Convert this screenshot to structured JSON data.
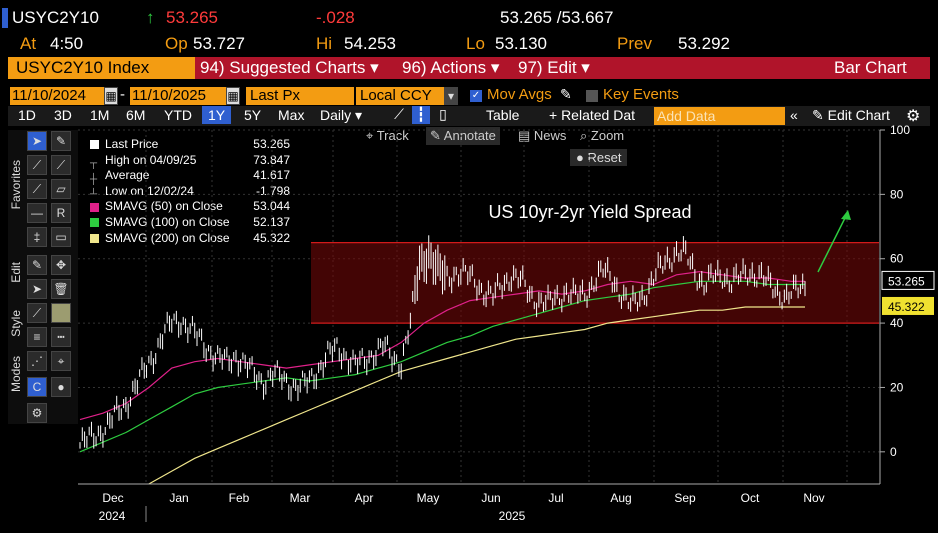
{
  "quote": {
    "ticker": "USYC2Y10",
    "arrow": "↑",
    "last": "53.265",
    "change": "-.028",
    "bid_ask": "53.265 /53.667",
    "at_label": "At",
    "at_time": "4:50",
    "open_label": "Op",
    "open": "53.727",
    "high_label": "Hi",
    "high": "54.253",
    "low_label": "Lo",
    "low": "53.130",
    "prev_label": "Prev",
    "prev": "53.292"
  },
  "menubar": {
    "security": "USYC2Y10 Index",
    "suggested": "94) Suggested Charts ▾",
    "actions": "96) Actions ▾",
    "edit": "97) Edit ▾",
    "chart_type": "Bar Chart"
  },
  "controls": {
    "start_date": "11/10/2024",
    "end_date": "11/10/2025",
    "field": "Last Px",
    "currency": "Local CCY",
    "mov_avgs": "Mov Avgs",
    "key_events": "Key Events",
    "periods": [
      "1D",
      "3D",
      "1M",
      "6M",
      "YTD",
      "1Y",
      "5Y",
      "Max"
    ],
    "active_period": "1Y",
    "frequency": "Daily ▾",
    "table": "Table",
    "related": "+ Related Dat",
    "add_data_placeholder": "Add Data",
    "edit_chart": "Edit Chart"
  },
  "chart_toolbar": {
    "track": "Track",
    "annotate": "Annotate",
    "news": "News",
    "zoom": "Zoom",
    "reset": "Reset"
  },
  "side_tabs": [
    "Favorites",
    "Edit",
    "Style",
    "Modes"
  ],
  "legend": [
    {
      "label": "Last Price",
      "value": "53.265",
      "color": "#ffffff"
    },
    {
      "label": "High on 04/09/25",
      "value": "73.847",
      "color": ""
    },
    {
      "label": "Average",
      "value": "41.617",
      "color": ""
    },
    {
      "label": "Low on 12/02/24",
      "value": "-1.798",
      "color": ""
    },
    {
      "label": "SMAVG (50)   on Close",
      "value": "53.044",
      "color": "#e0218a"
    },
    {
      "label": "SMAVG (100)  on Close",
      "value": "52.137",
      "color": "#2ecc40"
    },
    {
      "label": "SMAVG (200)  on Close",
      "value": "45.322",
      "color": "#f0e68c"
    }
  ],
  "chart_data": {
    "type": "bar",
    "title": "US 10yr-2yr Yield Spread",
    "y_ticks": [
      0,
      20,
      40,
      60,
      80,
      100
    ],
    "ylim": [
      -10,
      100
    ],
    "x_months": [
      "Dec",
      "Jan",
      "Feb",
      "Mar",
      "Apr",
      "May",
      "Jun",
      "Jul",
      "Aug",
      "Sep",
      "Oct",
      "Nov"
    ],
    "x_years": [
      "2024",
      "2025"
    ],
    "range_box": [
      40,
      65
    ],
    "last_price_label": "53.265",
    "sma200_label": "45.322",
    "colors": {
      "price": "#ffffff",
      "sma50": "#e0218a",
      "sma100": "#2ecc40",
      "sma200": "#f0e68c",
      "range": "#7a0a0a",
      "arrow": "#2ecc40"
    },
    "price_path": [
      [
        0,
        2
      ],
      [
        4,
        4
      ],
      [
        8,
        6
      ],
      [
        12,
        8
      ],
      [
        16,
        12
      ],
      [
        20,
        15
      ],
      [
        24,
        20
      ],
      [
        28,
        25
      ],
      [
        32,
        30
      ],
      [
        36,
        36
      ],
      [
        40,
        40
      ],
      [
        44,
        41
      ],
      [
        48,
        38
      ],
      [
        52,
        35
      ],
      [
        56,
        32
      ],
      [
        60,
        29
      ],
      [
        64,
        28
      ],
      [
        68,
        30
      ],
      [
        72,
        27
      ],
      [
        76,
        24
      ],
      [
        80,
        22
      ],
      [
        84,
        24
      ],
      [
        88,
        23
      ],
      [
        92,
        21
      ],
      [
        96,
        20
      ],
      [
        100,
        22
      ],
      [
        104,
        26
      ],
      [
        108,
        30
      ],
      [
        112,
        32
      ],
      [
        116,
        30
      ],
      [
        120,
        27
      ],
      [
        124,
        28
      ],
      [
        128,
        31
      ],
      [
        132,
        33
      ],
      [
        136,
        29
      ],
      [
        140,
        28
      ],
      [
        144,
        40
      ],
      [
        148,
        58
      ],
      [
        152,
        62
      ],
      [
        156,
        56
      ],
      [
        160,
        54
      ],
      [
        164,
        56
      ],
      [
        168,
        55
      ],
      [
        172,
        53
      ],
      [
        176,
        50
      ],
      [
        180,
        48
      ],
      [
        184,
        52
      ],
      [
        188,
        55
      ],
      [
        192,
        53
      ],
      [
        196,
        49
      ],
      [
        200,
        47
      ],
      [
        204,
        46
      ],
      [
        208,
        48
      ],
      [
        212,
        50
      ],
      [
        216,
        48
      ],
      [
        220,
        49
      ],
      [
        224,
        53
      ],
      [
        228,
        56
      ],
      [
        232,
        54
      ],
      [
        236,
        49
      ],
      [
        240,
        45
      ],
      [
        244,
        48
      ],
      [
        248,
        51
      ],
      [
        252,
        56
      ],
      [
        256,
        60
      ],
      [
        260,
        62
      ],
      [
        264,
        61
      ],
      [
        268,
        56
      ],
      [
        272,
        52
      ],
      [
        276,
        54
      ],
      [
        280,
        55
      ],
      [
        284,
        53
      ],
      [
        288,
        54
      ],
      [
        292,
        56
      ],
      [
        296,
        55
      ],
      [
        300,
        52
      ],
      [
        304,
        50
      ],
      [
        308,
        48
      ],
      [
        312,
        50
      ],
      [
        316,
        52
      ]
    ],
    "sma50": [
      [
        0,
        10
      ],
      [
        10,
        12
      ],
      [
        20,
        15
      ],
      [
        30,
        20
      ],
      [
        40,
        26
      ],
      [
        50,
        28
      ],
      [
        60,
        29
      ],
      [
        70,
        28
      ],
      [
        80,
        27
      ],
      [
        90,
        26
      ],
      [
        100,
        27
      ],
      [
        110,
        28
      ],
      [
        120,
        29
      ],
      [
        130,
        30
      ],
      [
        140,
        34
      ],
      [
        150,
        40
      ],
      [
        160,
        44
      ],
      [
        170,
        47
      ],
      [
        180,
        48
      ],
      [
        190,
        49
      ],
      [
        200,
        50
      ],
      [
        210,
        49
      ],
      [
        220,
        50
      ],
      [
        230,
        52
      ],
      [
        240,
        53
      ],
      [
        250,
        52
      ],
      [
        260,
        55
      ],
      [
        270,
        56
      ],
      [
        280,
        55
      ],
      [
        290,
        54
      ],
      [
        300,
        54
      ],
      [
        310,
        53
      ],
      [
        316,
        53
      ]
    ],
    "sma100": [
      [
        0,
        0
      ],
      [
        10,
        3
      ],
      [
        20,
        6
      ],
      [
        30,
        10
      ],
      [
        40,
        14
      ],
      [
        50,
        18
      ],
      [
        60,
        20
      ],
      [
        70,
        21
      ],
      [
        80,
        22
      ],
      [
        90,
        23
      ],
      [
        100,
        22
      ],
      [
        110,
        23
      ],
      [
        120,
        24
      ],
      [
        130,
        26
      ],
      [
        140,
        28
      ],
      [
        150,
        31
      ],
      [
        160,
        34
      ],
      [
        170,
        36
      ],
      [
        180,
        39
      ],
      [
        190,
        41
      ],
      [
        200,
        43
      ],
      [
        210,
        45
      ],
      [
        220,
        47
      ],
      [
        230,
        48
      ],
      [
        240,
        49
      ],
      [
        250,
        51
      ],
      [
        260,
        52
      ],
      [
        270,
        53
      ],
      [
        280,
        53
      ],
      [
        290,
        53
      ],
      [
        300,
        52
      ],
      [
        310,
        52
      ],
      [
        316,
        52
      ]
    ],
    "sma200": [
      [
        30,
        -10
      ],
      [
        40,
        -6
      ],
      [
        50,
        -2
      ],
      [
        60,
        1
      ],
      [
        70,
        4
      ],
      [
        80,
        7
      ],
      [
        90,
        10
      ],
      [
        100,
        13
      ],
      [
        110,
        16
      ],
      [
        120,
        19
      ],
      [
        130,
        22
      ],
      [
        140,
        25
      ],
      [
        150,
        27
      ],
      [
        160,
        29
      ],
      [
        170,
        31
      ],
      [
        180,
        33
      ],
      [
        190,
        35
      ],
      [
        200,
        36
      ],
      [
        210,
        37
      ],
      [
        220,
        38
      ],
      [
        230,
        40
      ],
      [
        240,
        41
      ],
      [
        250,
        42
      ],
      [
        260,
        43
      ],
      [
        270,
        44
      ],
      [
        280,
        44
      ],
      [
        290,
        45
      ],
      [
        300,
        45
      ],
      [
        310,
        45
      ],
      [
        316,
        45
      ]
    ]
  }
}
